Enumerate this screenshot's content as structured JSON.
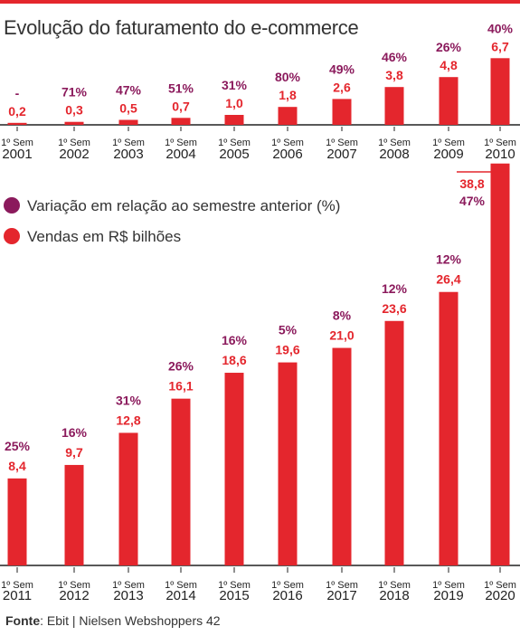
{
  "title": "Evolução do faturamento do e-commerce",
  "legend": {
    "pct_label": "Variação em relação ao semestre anterior (%)",
    "sales_label": "Vendas em R$ bilhões"
  },
  "source": {
    "label": "Fonte",
    "text": ": Ebit | Nielsen Webshoppers 42"
  },
  "colors": {
    "bar": "#e4262d",
    "percent": "#8b1a5c",
    "value": "#e4262d",
    "axis": "#222222"
  },
  "chart_data": [
    {
      "type": "bar",
      "period_label": "1º Sem",
      "categories": [
        "2001",
        "2002",
        "2003",
        "2004",
        "2005",
        "2006",
        "2007",
        "2008",
        "2009",
        "2010"
      ],
      "series": [
        {
          "name": "Vendas em R$ bilhões",
          "values": [
            0.2,
            0.3,
            0.5,
            0.7,
            1.0,
            1.8,
            2.6,
            3.8,
            4.8,
            6.7
          ],
          "labels": [
            "0,2",
            "0,3",
            "0,5",
            "0,7",
            "1,0",
            "1,8",
            "2,6",
            "3,8",
            "4,8",
            "6,7"
          ]
        },
        {
          "name": "Variação em relação ao semestre anterior (%)",
          "values": [
            null,
            71,
            47,
            51,
            31,
            80,
            49,
            46,
            26,
            40
          ],
          "labels": [
            "-",
            "71%",
            "47%",
            "51%",
            "31%",
            "80%",
            "49%",
            "46%",
            "26%",
            "40%"
          ]
        }
      ]
    },
    {
      "type": "bar",
      "period_label": "1º Sem",
      "categories": [
        "2011",
        "2012",
        "2013",
        "2014",
        "2015",
        "2016",
        "2017",
        "2018",
        "2019",
        "2020"
      ],
      "series": [
        {
          "name": "Vendas em R$ bilhões",
          "values": [
            8.4,
            9.7,
            12.8,
            16.1,
            18.6,
            19.6,
            21.0,
            23.6,
            26.4,
            38.8
          ],
          "labels": [
            "8,4",
            "9,7",
            "12,8",
            "16,1",
            "18,6",
            "19,6",
            "21,0",
            "23,6",
            "26,4",
            "38,8"
          ]
        },
        {
          "name": "Variação em relação ao semestre anterior (%)",
          "values": [
            25,
            16,
            31,
            26,
            16,
            5,
            8,
            12,
            12,
            47
          ],
          "labels": [
            "25%",
            "16%",
            "31%",
            "26%",
            "16%",
            "5%",
            "8%",
            "12%",
            "12%",
            "47%"
          ]
        }
      ]
    }
  ]
}
